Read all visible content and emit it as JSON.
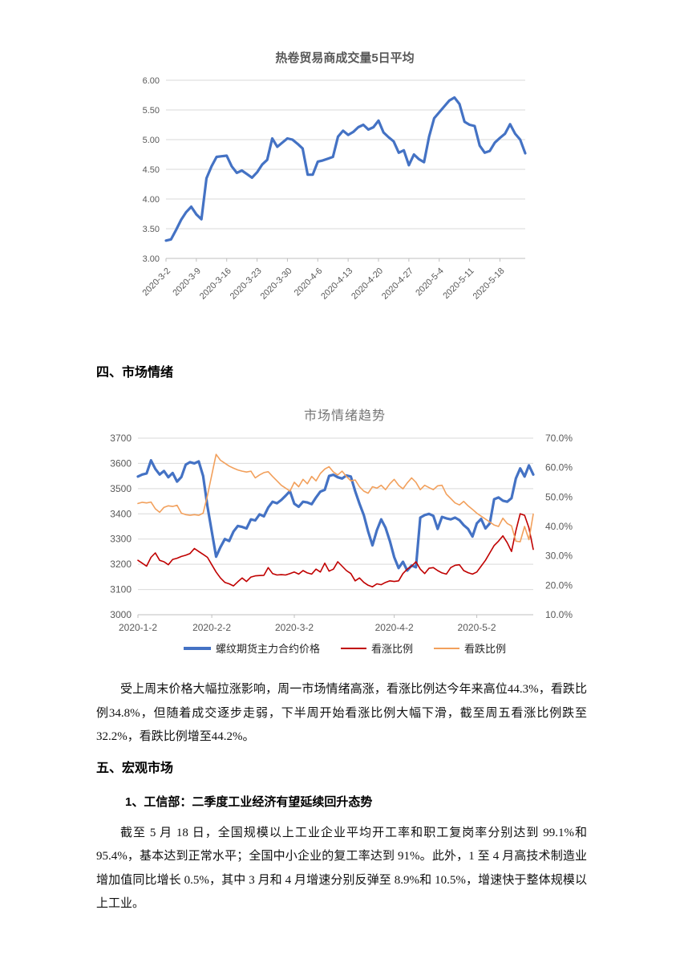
{
  "document": {
    "sections": {
      "market_sentiment_heading": "四、市场情绪",
      "macro_heading": "五、宏观市场",
      "macro_item1_heading": "1、工信部：二季度工业经济有望延续回升态势"
    },
    "paragraphs": {
      "sentiment": "受上周末价格大幅拉涨影响，周一市场情绪高涨，看涨比例达今年来高位44.3%，看跌比例34.8%，但随着成交逐步走弱，下半周开始看涨比例大幅下滑，截至周五看涨比例跌至32.2%，看跌比例增至44.2%。",
      "macro": "截至 5 月 18 日，全国规模以上工业企业平均开工率和职工复岗率分别达到 99.1%和 95.4%，基本达到正常水平；全国中小企业的复工率达到 91%。此外，1 至 4 月高技术制造业增加值同比增长 0.5%，其中 3 月和 4 月增速分别反弹至 8.9%和 10.5%，增速快于整体规模以上工业。"
    }
  },
  "colors": {
    "grid": "#d9d9d9",
    "axis": "#bfbfbf",
    "axis_label": "#595959",
    "blue": "#4472C4",
    "red": "#C00000",
    "orange": "#F2A05C"
  },
  "chart_data": [
    {
      "type": "line",
      "title": "热卷贸易商成交量5日平均",
      "grid": "horizontal",
      "left_range": [
        3.0,
        6.0
      ],
      "y_tick_labels": [
        "6.00",
        "5.50",
        "5.00",
        "4.50",
        "4.00",
        "3.50",
        "3.00"
      ],
      "x_tick_labels": [
        "2020-3-2",
        "2020-3-9",
        "2020-3-16",
        "2020-3-23",
        "2020-3-30",
        "2020-4-6",
        "2020-4-13",
        "2020-4-20",
        "2020-4-27",
        "2020-5-4",
        "2020-5-11",
        "2020-5-18"
      ],
      "x_tick_indices": [
        0,
        6,
        12,
        18,
        24,
        30,
        36,
        42,
        48,
        54,
        60,
        66
      ],
      "series": [
        {
          "name": "热卷贸易商成交量5日平均",
          "axis": "left",
          "color": "#4472C4",
          "width": 3.2,
          "values": [
            3.3,
            3.32,
            3.48,
            3.65,
            3.78,
            3.87,
            3.74,
            3.66,
            4.35,
            4.55,
            4.71,
            4.72,
            4.73,
            4.55,
            4.44,
            4.48,
            4.42,
            4.36,
            4.45,
            4.58,
            4.66,
            5.02,
            4.88,
            4.95,
            5.02,
            5.0,
            4.93,
            4.85,
            4.41,
            4.41,
            4.63,
            4.65,
            4.68,
            4.71,
            5.05,
            5.15,
            5.08,
            5.13,
            5.21,
            5.25,
            5.17,
            5.21,
            5.32,
            5.12,
            5.04,
            4.97,
            4.78,
            4.82,
            4.57,
            4.75,
            4.67,
            4.62,
            5.05,
            5.36,
            5.46,
            5.56,
            5.66,
            5.71,
            5.6,
            5.3,
            5.25,
            5.23,
            4.9,
            4.78,
            4.81,
            4.95,
            5.03,
            5.1,
            5.26,
            5.1,
            5.0,
            4.77
          ]
        }
      ]
    },
    {
      "type": "line-dual-axis",
      "title": "市场情绪趋势",
      "grid": "horizontal",
      "legend_position": "bottom",
      "left_range": [
        3000,
        3700
      ],
      "right_range": [
        10,
        70
      ],
      "left_tick_labels": [
        "3700",
        "3600",
        "3500",
        "3400",
        "3300",
        "3200",
        "3100",
        "3000"
      ],
      "right_tick_labels": [
        "70.0%",
        "60.0%",
        "50.0%",
        "40.0%",
        "30.0%",
        "20.0%",
        "10.0%"
      ],
      "x_tick_labels": [
        "2020-1-2",
        "2020-2-2",
        "2020-3-2",
        "2020-4-2",
        "2020-5-2"
      ],
      "x_tick_indices": [
        0,
        17,
        36,
        59,
        78
      ],
      "series": [
        {
          "name": "螺纹期货主力合约价格",
          "axis": "left",
          "color": "#4472C4",
          "width": 3.2,
          "values": [
            3548,
            3556,
            3560,
            3612,
            3578,
            3556,
            3570,
            3545,
            3562,
            3528,
            3546,
            3595,
            3605,
            3600,
            3608,
            3550,
            3430,
            3330,
            3230,
            3268,
            3300,
            3292,
            3330,
            3352,
            3348,
            3342,
            3378,
            3374,
            3398,
            3390,
            3425,
            3448,
            3442,
            3455,
            3472,
            3490,
            3440,
            3428,
            3448,
            3445,
            3438,
            3465,
            3488,
            3495,
            3550,
            3555,
            3545,
            3540,
            3552,
            3548,
            3490,
            3440,
            3395,
            3330,
            3275,
            3335,
            3378,
            3345,
            3292,
            3228,
            3185,
            3210,
            3175,
            3195,
            3188,
            3385,
            3395,
            3400,
            3392,
            3340,
            3388,
            3382,
            3378,
            3385,
            3375,
            3355,
            3340,
            3310,
            3362,
            3380,
            3342,
            3362,
            3458,
            3465,
            3452,
            3448,
            3462,
            3540,
            3580,
            3548,
            3592,
            3556
          ]
        },
        {
          "name": "看涨比例",
          "axis": "right",
          "color": "#C00000",
          "width": 1.6,
          "values": [
            28.5,
            27.5,
            26.5,
            29.5,
            31.0,
            28.5,
            28.0,
            27.0,
            28.8,
            29.2,
            29.8,
            30.2,
            30.8,
            32.5,
            31.5,
            30.5,
            29.5,
            27.0,
            24.5,
            22.5,
            21.0,
            20.5,
            19.8,
            21.2,
            22.5,
            21.3,
            22.8,
            23.2,
            23.3,
            23.4,
            26.0,
            24.0,
            23.5,
            23.6,
            23.5,
            24.0,
            24.5,
            23.8,
            25.0,
            24.2,
            23.8,
            25.5,
            24.5,
            27.5,
            24.8,
            25.5,
            28.0,
            26.5,
            25.0,
            24.0,
            21.5,
            22.5,
            21.0,
            20.0,
            19.5,
            20.5,
            20.2,
            21.0,
            21.5,
            21.3,
            21.5,
            24.0,
            25.5,
            26.5,
            28.0,
            25.5,
            24.0,
            25.8,
            26.0,
            25.0,
            24.2,
            23.8,
            26.0,
            26.8,
            27.0,
            25.0,
            24.3,
            23.8,
            24.5,
            26.5,
            28.5,
            31.0,
            33.5,
            35.0,
            36.8,
            34.5,
            31.5,
            38.5,
            44.3,
            43.8,
            39.5,
            32.2
          ]
        },
        {
          "name": "看跌比例",
          "axis": "right",
          "color": "#F2A05C",
          "width": 1.6,
          "values": [
            47.8,
            48.2,
            48.0,
            48.3,
            46.0,
            44.8,
            46.5,
            47.0,
            46.8,
            47.2,
            44.5,
            44.0,
            43.8,
            44.0,
            43.8,
            44.5,
            50.5,
            57.5,
            64.5,
            62.5,
            61.5,
            60.5,
            59.8,
            59.2,
            58.8,
            58.5,
            58.8,
            56.5,
            57.5,
            58.3,
            58.6,
            57.0,
            55.5,
            54.0,
            53.0,
            52.0,
            55.0,
            53.5,
            56.0,
            54.5,
            57.0,
            55.5,
            58.0,
            59.5,
            60.3,
            58.5,
            57.5,
            58.8,
            57.0,
            55.5,
            55.8,
            53.5,
            52.0,
            51.3,
            53.5,
            53.0,
            54.0,
            52.5,
            54.5,
            56.0,
            54.0,
            52.8,
            54.8,
            56.5,
            55.0,
            52.5,
            54.0,
            53.2,
            52.5,
            53.8,
            54.0,
            51.0,
            49.5,
            48.0,
            47.3,
            48.5,
            47.0,
            45.8,
            44.5,
            43.5,
            42.5,
            41.5,
            40.5,
            40.0,
            42.8,
            41.0,
            40.2,
            35.0,
            34.8,
            40.0,
            35.5,
            44.2
          ]
        }
      ]
    }
  ]
}
